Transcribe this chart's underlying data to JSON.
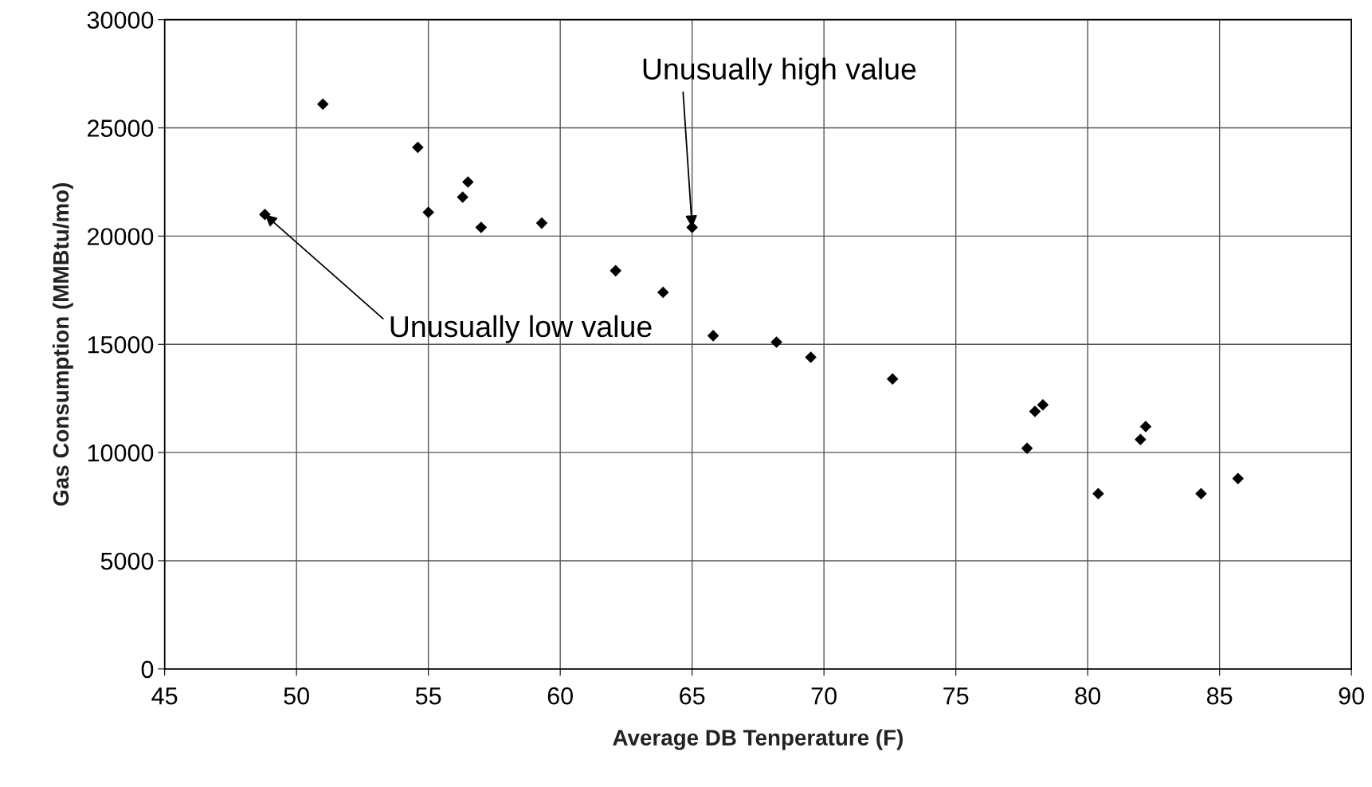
{
  "chart_data": {
    "type": "scatter",
    "xlabel": "Average DB Tenperature (F)",
    "ylabel": "Gas Consumption (MMBtu/mo)",
    "x": [
      48.8,
      51.0,
      54.6,
      55.0,
      56.3,
      56.5,
      57.0,
      59.3,
      62.1,
      63.9,
      65.0,
      65.8,
      68.2,
      69.5,
      72.6,
      77.7,
      78.0,
      78.3,
      80.4,
      82.0,
      82.2,
      84.3,
      85.7
    ],
    "series": [
      {
        "color": "#000000",
        "values": [
          21000,
          26100,
          24100,
          21100,
          21800,
          22500,
          20400,
          20600,
          18400,
          17400,
          20400,
          15400,
          15100,
          14400,
          13400,
          10200,
          11900,
          12200,
          8100,
          10600,
          11200,
          8100,
          8800
        ]
      }
    ],
    "xlim": [
      45,
      90
    ],
    "xticks": [
      45,
      50,
      55,
      60,
      65,
      70,
      75,
      80,
      85,
      90
    ],
    "ylim": [
      0,
      30000
    ],
    "yticks": [
      0,
      5000,
      10000,
      15000,
      20000,
      25000,
      30000
    ],
    "grid": true,
    "marker": "diamond",
    "annotations": [
      {
        "text": "Unusually high value",
        "x": 65.0,
        "y": 20400
      },
      {
        "text": "Unusually low value",
        "x": 48.8,
        "y": 21000
      }
    ]
  }
}
